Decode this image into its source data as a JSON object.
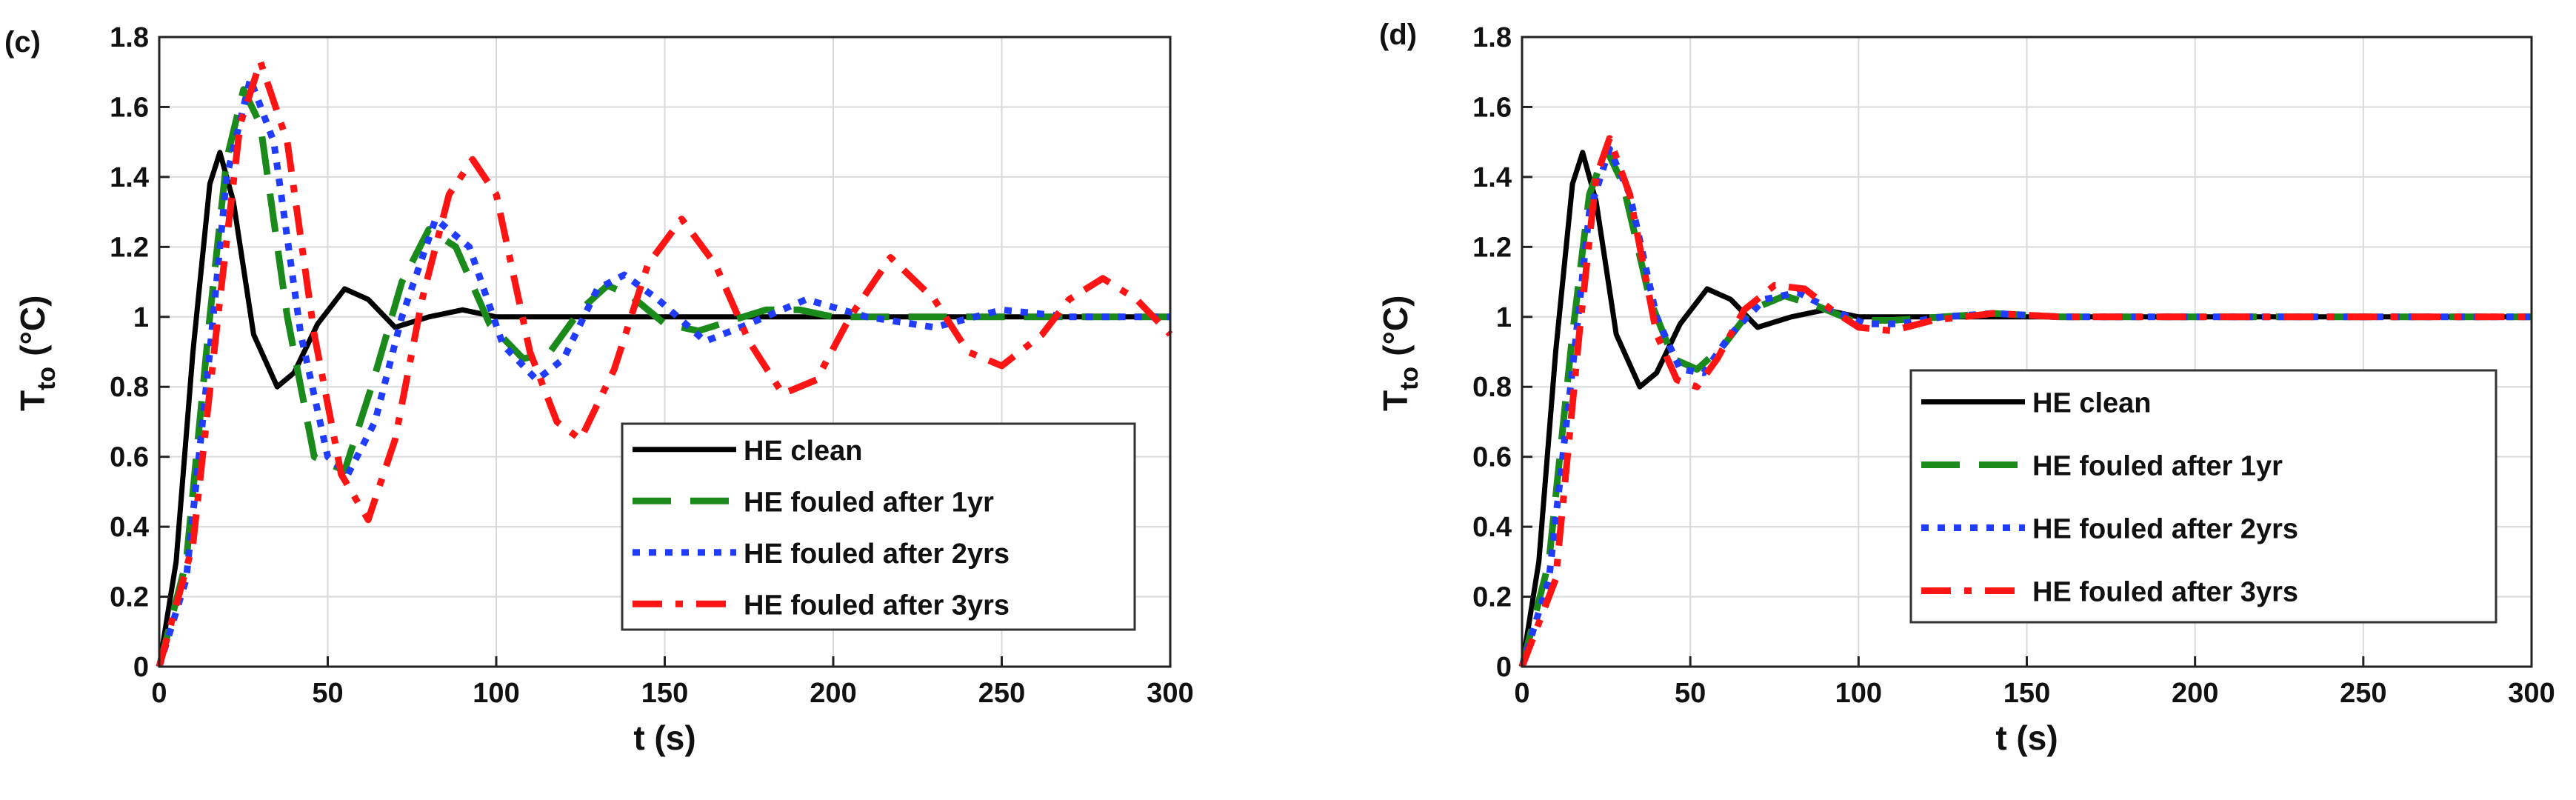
{
  "chart_data": [
    {
      "type": "line",
      "panel_label": "(c)",
      "xlabel": "t (s)",
      "ylabel_main": "T",
      "ylabel_sub": "to",
      "ylabel_unit": "(°C)",
      "xlim": [
        0,
        300
      ],
      "ylim": [
        0,
        1.8
      ],
      "xticks": [
        0,
        50,
        100,
        150,
        200,
        250,
        300
      ],
      "yticks": [
        0,
        0.2,
        0.4,
        0.6,
        0.8,
        1,
        1.2,
        1.4,
        1.6,
        1.8
      ],
      "xtick_labels": [
        "0",
        "50",
        "100",
        "150",
        "200",
        "250",
        "300"
      ],
      "ytick_labels": [
        "0",
        "0.2",
        "0.4",
        "0.6",
        "0.8",
        "1",
        "1.2",
        "1.4",
        "1.6",
        "1.8"
      ],
      "grid": true,
      "legend_position": "bottom-right",
      "series": [
        {
          "name": "HE clean",
          "color": "#000000",
          "style": "solid",
          "x": [
            0,
            5,
            10,
            15,
            18,
            22,
            28,
            35,
            40,
            47,
            55,
            62,
            70,
            80,
            90,
            100,
            120,
            150,
            200,
            250,
            300
          ],
          "y": [
            0,
            0.3,
            0.9,
            1.38,
            1.47,
            1.33,
            0.95,
            0.8,
            0.84,
            0.98,
            1.08,
            1.05,
            0.97,
            1.0,
            1.02,
            1.0,
            1.0,
            1.0,
            1.0,
            1.0,
            1.0
          ]
        },
        {
          "name": "HE fouled after 1yr",
          "color": "#1a8a1a",
          "style": "dash",
          "x": [
            0,
            8,
            15,
            20,
            25,
            30,
            38,
            46,
            55,
            63,
            72,
            80,
            88,
            98,
            108,
            116,
            125,
            133,
            140,
            150,
            160,
            170,
            180,
            190,
            200,
            215,
            230,
            250,
            270,
            300
          ],
          "y": [
            0,
            0.3,
            1.0,
            1.45,
            1.65,
            1.55,
            1.0,
            0.6,
            0.56,
            0.8,
            1.1,
            1.25,
            1.2,
            0.98,
            0.88,
            0.9,
            1.02,
            1.09,
            1.06,
            0.98,
            0.96,
            0.99,
            1.02,
            1.02,
            1.0,
            1.0,
            1.0,
            1.0,
            1.0,
            1.0
          ]
        },
        {
          "name": "HE fouled after 2yrs",
          "color": "#1f3cff",
          "style": "dot",
          "x": [
            0,
            8,
            15,
            20,
            27,
            34,
            42,
            50,
            56,
            64,
            72,
            82,
            92,
            102,
            112,
            120,
            130,
            138,
            148,
            162,
            175,
            192,
            210,
            230,
            250,
            270,
            300
          ],
          "y": [
            0,
            0.25,
            0.9,
            1.4,
            1.68,
            1.5,
            0.95,
            0.6,
            0.55,
            0.7,
            1.0,
            1.28,
            1.2,
            0.92,
            0.82,
            0.88,
            1.08,
            1.12,
            1.05,
            0.93,
            0.98,
            1.05,
            1.0,
            0.97,
            1.02,
            1.0,
            1.0
          ]
        },
        {
          "name": "HE fouled after 3yrs",
          "color": "#ff1414",
          "style": "dashdot",
          "x": [
            0,
            10,
            18,
            24,
            30,
            38,
            46,
            54,
            62,
            70,
            78,
            86,
            93,
            100,
            110,
            118,
            125,
            135,
            145,
            155,
            165,
            175,
            185,
            195,
            205,
            217,
            230,
            240,
            250,
            262,
            270,
            280,
            290,
            300
          ],
          "y": [
            0,
            0.35,
            1.05,
            1.55,
            1.73,
            1.5,
            0.95,
            0.55,
            0.42,
            0.65,
            1.05,
            1.35,
            1.45,
            1.35,
            0.9,
            0.7,
            0.65,
            0.85,
            1.15,
            1.28,
            1.15,
            0.93,
            0.78,
            0.82,
            1.0,
            1.17,
            1.05,
            0.9,
            0.86,
            0.95,
            1.05,
            1.11,
            1.05,
            0.95
          ]
        }
      ]
    },
    {
      "type": "line",
      "panel_label": "(d)",
      "xlabel": "t (s)",
      "ylabel_main": "T",
      "ylabel_sub": "to",
      "ylabel_unit": "(°C)",
      "xlim": [
        0,
        300
      ],
      "ylim": [
        0,
        1.8
      ],
      "xticks": [
        0,
        50,
        100,
        150,
        200,
        250,
        300
      ],
      "yticks": [
        0,
        0.2,
        0.4,
        0.6,
        0.8,
        1,
        1.2,
        1.4,
        1.6,
        1.8
      ],
      "xtick_labels": [
        "0",
        "50",
        "100",
        "150",
        "200",
        "250",
        "300"
      ],
      "ytick_labels": [
        "0",
        "0.2",
        "0.4",
        "0.6",
        "0.8",
        "1",
        "1.2",
        "1.4",
        "1.6",
        "1.8"
      ],
      "grid": true,
      "legend_position": "bottom-right",
      "series": [
        {
          "name": "HE clean",
          "color": "#000000",
          "style": "solid",
          "x": [
            0,
            5,
            10,
            15,
            18,
            22,
            28,
            35,
            40,
            47,
            55,
            62,
            70,
            80,
            90,
            100,
            120,
            150,
            200,
            250,
            300
          ],
          "y": [
            0,
            0.3,
            0.9,
            1.38,
            1.47,
            1.33,
            0.95,
            0.8,
            0.84,
            0.98,
            1.08,
            1.05,
            0.97,
            1.0,
            1.02,
            1.0,
            1.0,
            1.0,
            1.0,
            1.0,
            1.0
          ]
        },
        {
          "name": "HE fouled after 1yr",
          "color": "#1a8a1a",
          "style": "dash",
          "x": [
            0,
            8,
            15,
            20,
            25,
            30,
            38,
            45,
            52,
            60,
            68,
            78,
            88,
            98,
            110,
            125,
            140,
            160,
            200,
            250,
            300
          ],
          "y": [
            0,
            0.3,
            0.95,
            1.35,
            1.48,
            1.38,
            1.05,
            0.88,
            0.85,
            0.92,
            1.02,
            1.06,
            1.03,
            0.99,
            0.99,
            1.0,
            1.01,
            1.0,
            1.0,
            1.0,
            1.0
          ]
        },
        {
          "name": "HE fouled after 2yrs",
          "color": "#1f3cff",
          "style": "dot",
          "x": [
            0,
            8,
            15,
            20,
            26,
            32,
            40,
            47,
            54,
            62,
            72,
            82,
            92,
            102,
            112,
            125,
            140,
            160,
            200,
            250,
            300
          ],
          "y": [
            0,
            0.25,
            0.85,
            1.3,
            1.48,
            1.35,
            1.0,
            0.85,
            0.84,
            0.95,
            1.05,
            1.07,
            1.02,
            0.98,
            0.98,
            1.0,
            1.01,
            1.0,
            1.0,
            1.0,
            1.0
          ]
        },
        {
          "name": "HE fouled after 3yrs",
          "color": "#ff1414",
          "style": "dashdot",
          "x": [
            0,
            10,
            17,
            22,
            26,
            32,
            40,
            46,
            52,
            58,
            66,
            75,
            84,
            92,
            100,
            110,
            122,
            140,
            160,
            200,
            250,
            300
          ],
          "y": [
            0,
            0.25,
            0.95,
            1.4,
            1.51,
            1.35,
            0.95,
            0.82,
            0.8,
            0.88,
            1.02,
            1.09,
            1.08,
            1.02,
            0.97,
            0.96,
            0.99,
            1.01,
            1.0,
            1.0,
            1.0,
            1.0
          ]
        }
      ]
    }
  ]
}
